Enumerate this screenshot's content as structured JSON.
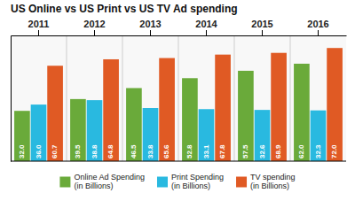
{
  "chart_data": {
    "type": "bar",
    "title": "US Online vs US Print vs US TV Ad spending",
    "categories": [
      "2011",
      "2012",
      "2013",
      "2014",
      "2015",
      "2016"
    ],
    "series": [
      {
        "name": "Online Ad Spending\n(in Billions)",
        "color": "#6aaa3a",
        "values": [
          32.0,
          39.5,
          46.5,
          52.8,
          57.5,
          62.0
        ],
        "value_labels": [
          "32.0",
          "39.5",
          "46.5",
          "52.8",
          "57.5",
          "62.0"
        ]
      },
      {
        "name": "Print Spending\n(in Billions)",
        "color": "#29b9e0",
        "values": [
          36.0,
          38.8,
          33.8,
          33.1,
          32.6,
          32.3
        ],
        "value_labels": [
          "36.0",
          "38.8",
          "33.8",
          "33.1",
          "32.6",
          "32.3"
        ]
      },
      {
        "name": "TV spending\n(in Billions)",
        "color": "#e05a24",
        "values": [
          60.7,
          64.8,
          65.6,
          67.8,
          68.9,
          72.0
        ],
        "value_labels": [
          "60.7",
          "64.8",
          "65.6",
          "67.8",
          "68.9",
          "72.0"
        ]
      }
    ],
    "ylim": [
      0,
      80
    ],
    "grid": false,
    "data_labels": true,
    "tick_labels": "x"
  }
}
